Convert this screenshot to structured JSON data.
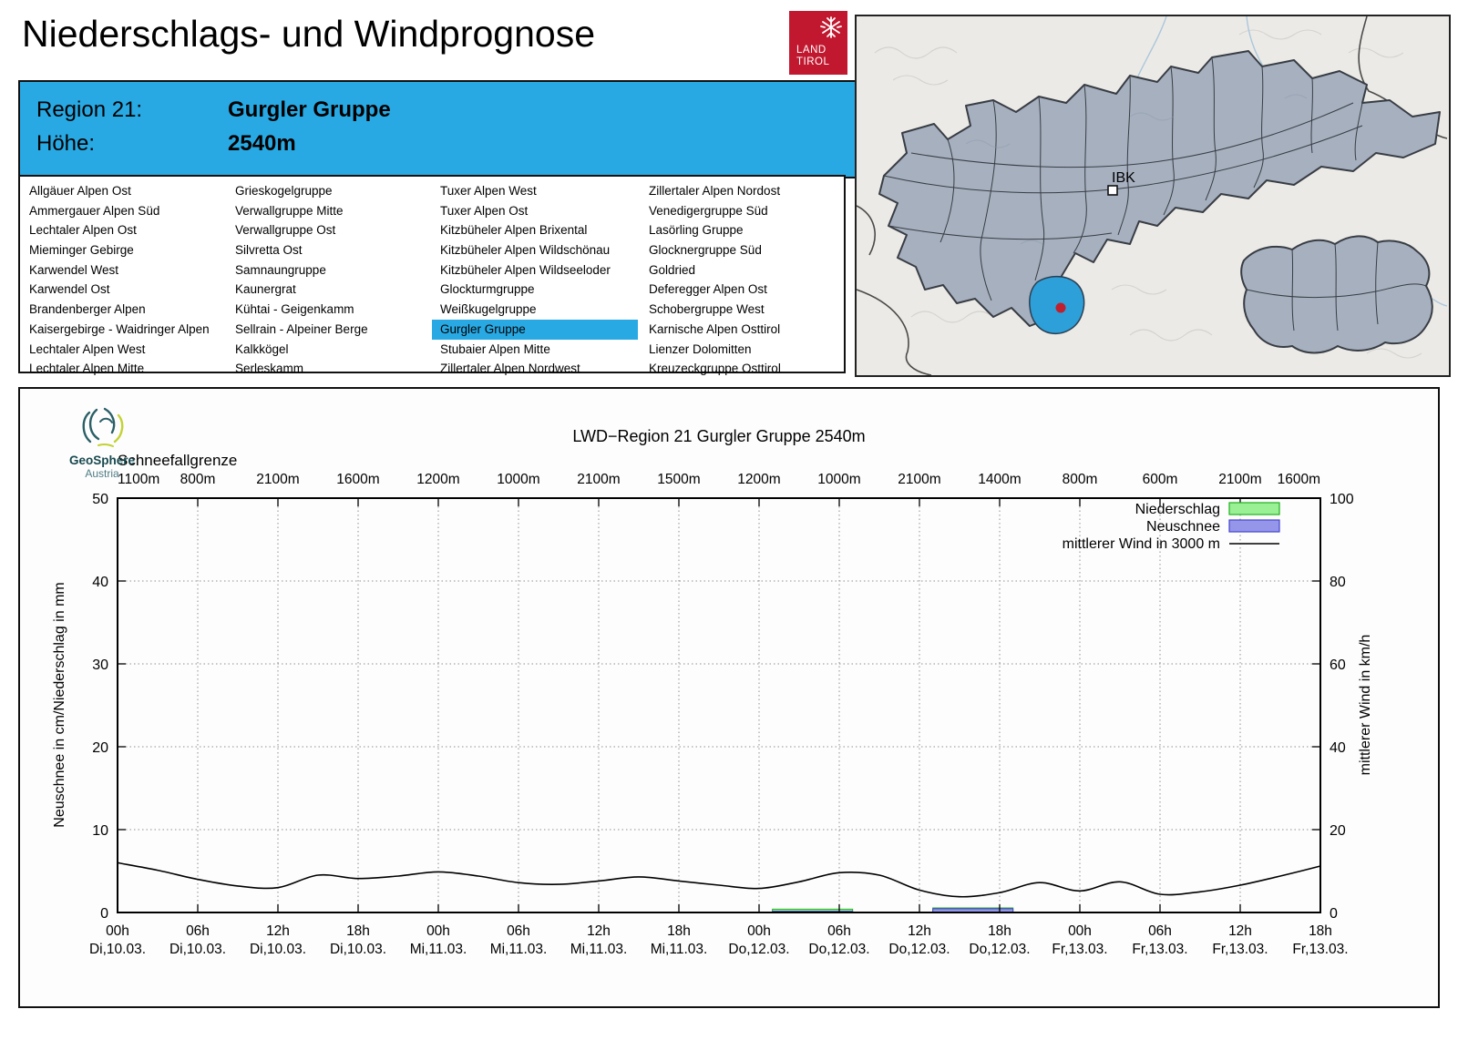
{
  "header": {
    "title": "Niederschlags- und Windprognose",
    "logo": {
      "line1": "LAND",
      "line2": "TIROL",
      "color": "#c1182f",
      "icon": "tirol-eagle-snowflake-icon"
    }
  },
  "region_info": {
    "bg_color": "#29a9e3",
    "rows": [
      {
        "label": "Region 21:",
        "value": "Gurgler Gruppe"
      },
      {
        "label": "Höhe:",
        "value": "2540m"
      }
    ]
  },
  "region_list": {
    "selected": "Gurgler Gruppe",
    "selected_bg": "#29a9e3",
    "columns": [
      [
        "Allgäuer Alpen Ost",
        "Ammergauer Alpen Süd",
        "Lechtaler Alpen Ost",
        "Mieminger Gebirge",
        "Karwendel West",
        "Karwendel Ost",
        "Brandenberger Alpen",
        "Kaisergebirge - Waidringer Alpen",
        "Lechtaler Alpen West",
        "Lechtaler Alpen Mitte"
      ],
      [
        "Grieskogelgruppe",
        "Verwallgruppe Mitte",
        "Verwallgruppe Ost",
        "Silvretta Ost",
        "Samnaungruppe",
        "Kaunergrat",
        "Kühtai - Geigenkamm",
        "Sellrain - Alpeiner Berge",
        "Kalkkögel",
        "Serleskamm"
      ],
      [
        "Tuxer Alpen West",
        "Tuxer Alpen Ost",
        "Kitzbüheler Alpen Brixental",
        "Kitzbüheler Alpen Wildschönau",
        "Kitzbüheler Alpen Wildseeloder",
        "Glockturmgruppe",
        "Weißkugelgruppe",
        "Gurgler Gruppe",
        "Stubaier Alpen Mitte",
        "Zillertaler Alpen Nordwest"
      ],
      [
        "Zillertaler Alpen Nordost",
        "Venedigergruppe Süd",
        "Lasörling Gruppe",
        "Glocknergruppe Süd",
        "Goldried",
        "Deferegger Alpen Ost",
        "Schobergruppe West",
        "Karnische Alpen Osttirol",
        "Lienzer Dolomitten",
        "Kreuzeckgruppe Osttirol"
      ]
    ]
  },
  "map": {
    "city_label": "IBK",
    "region_fill": "#a6b0bf",
    "highlight_color": "#2d9fd9",
    "marker_color": "#c01f2e"
  },
  "chart": {
    "logo": {
      "name": "GeoSphere",
      "sub": "Austria"
    }
  },
  "chart_data": {
    "type": "line+bar",
    "title": "LWD−Region 21 Gurgler Gruppe 2540m",
    "snowline_label": "Schneefallgrenze",
    "snowline_values": [
      "1100m",
      "800m",
      "2100m",
      "1600m",
      "1200m",
      "1000m",
      "2100m",
      "1500m",
      "1200m",
      "1000m",
      "2100m",
      "1400m",
      "800m",
      "600m",
      "2100m",
      "1600m"
    ],
    "x_ticks": [
      {
        "time": "00h",
        "date": "Di,10.03."
      },
      {
        "time": "06h",
        "date": "Di,10.03."
      },
      {
        "time": "12h",
        "date": "Di,10.03."
      },
      {
        "time": "18h",
        "date": "Di,10.03."
      },
      {
        "time": "00h",
        "date": "Mi,11.03."
      },
      {
        "time": "06h",
        "date": "Mi,11.03."
      },
      {
        "time": "12h",
        "date": "Mi,11.03."
      },
      {
        "time": "18h",
        "date": "Mi,11.03."
      },
      {
        "time": "00h",
        "date": "Do,12.03."
      },
      {
        "time": "06h",
        "date": "Do,12.03."
      },
      {
        "time": "12h",
        "date": "Do,12.03."
      },
      {
        "time": "18h",
        "date": "Do,12.03."
      },
      {
        "time": "00h",
        "date": "Fr,13.03."
      },
      {
        "time": "06h",
        "date": "Fr,13.03."
      },
      {
        "time": "12h",
        "date": "Fr,13.03."
      },
      {
        "time": "18h",
        "date": "Fr,13.03."
      }
    ],
    "x_hours_span": 90,
    "tick_interval_hours": 6,
    "y_left": {
      "label": "Neuschnee in cm/Niederschlag in mm",
      "min": 0,
      "max": 50,
      "step": 10
    },
    "y_right": {
      "label": "mittlerer Wind in km/h",
      "min": 0,
      "max": 100,
      "step": 20
    },
    "grid": {
      "style": "dotted",
      "color": "#909090"
    },
    "legend": [
      {
        "label": "Niederschlag",
        "type": "box",
        "fill": "#99f095",
        "stroke": "#20b020"
      },
      {
        "label": "Neuschnee",
        "type": "box",
        "fill": "#9595ea",
        "stroke": "#4444cc"
      },
      {
        "label": "mittlerer Wind in 3000 m",
        "type": "line",
        "stroke": "#000000"
      }
    ],
    "wind_series": {
      "name": "mittlerer Wind in 3000 m",
      "unit": "km/h",
      "axis": "right",
      "hours": [
        0,
        3,
        6,
        9,
        12,
        15,
        18,
        21,
        24,
        27,
        30,
        33,
        36,
        39,
        42,
        45,
        48,
        51,
        54,
        57,
        60,
        63,
        66,
        69,
        72,
        75,
        78,
        81,
        84,
        87,
        90
      ],
      "values": [
        12,
        10.2,
        8,
        6.4,
        6,
        9,
        8.2,
        8.8,
        9.8,
        8.8,
        7.2,
        6.8,
        7.6,
        8.6,
        7.6,
        6.6,
        5.8,
        7.4,
        9.6,
        9,
        5.4,
        3.8,
        4.8,
        7.2,
        5.2,
        7.4,
        4.4,
        5,
        6.6,
        8.8,
        11.2
      ]
    },
    "precip_bars": [
      {
        "from_hour": 49,
        "to_hour": 55,
        "niederschlag_mm": 0.4,
        "neuschnee_cm": 0.15
      },
      {
        "from_hour": 61,
        "to_hour": 67,
        "niederschlag_mm": 0.55,
        "neuschnee_cm": 0.45
      }
    ]
  }
}
